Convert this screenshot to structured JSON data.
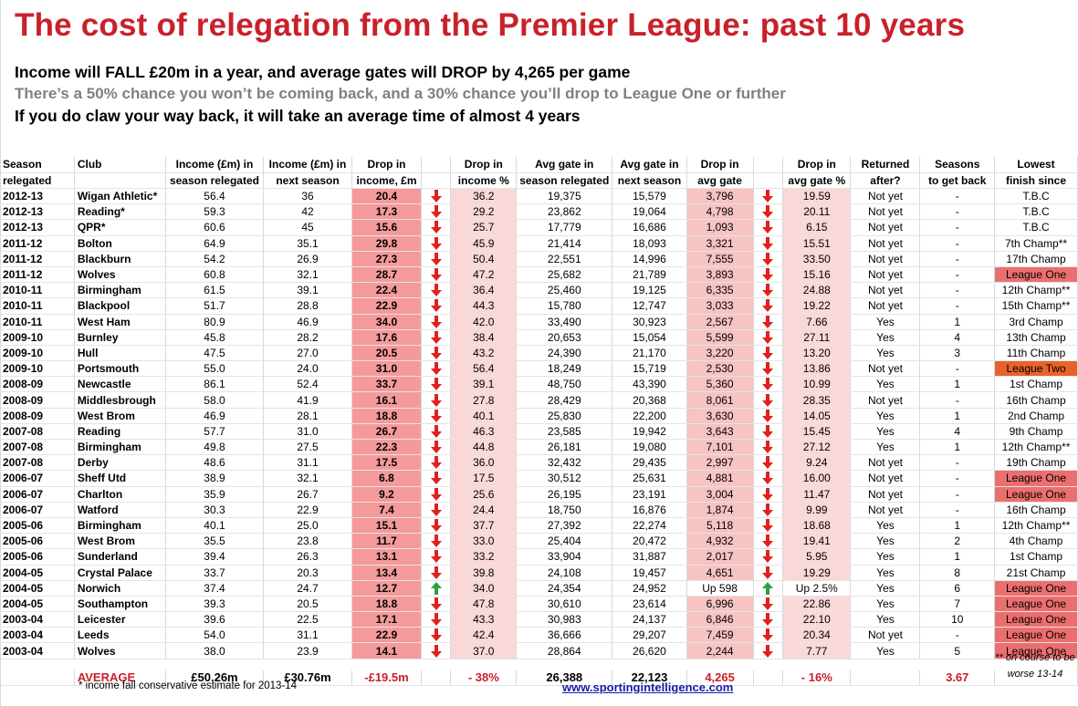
{
  "title": "The cost of relegation from the Premier League: past 10 years",
  "headline_1": "Income will FALL £20m in a year, and average gates will DROP by 4,265 per game",
  "headline_2": "There’s a 50% chance you won’t be coming back, and a 30% chance you’ll drop to League One or further",
  "headline_3": "If you do claw your way back, it will take an average time of almost 4 years",
  "colors": {
    "title": "#c8212b",
    "drop": "#e02020",
    "up": "#2ea043",
    "league_one": "#ec6f6f",
    "league_two": "#e8632a"
  },
  "headers": {
    "season": [
      "Season",
      "relegated"
    ],
    "club": [
      "Club",
      ""
    ],
    "income": [
      "Income (£m) in",
      "season relegated"
    ],
    "income_next": [
      "Income (£m) in",
      "next season"
    ],
    "drop_income": [
      "Drop in",
      "income, £m"
    ],
    "drop_income_pct": [
      "Drop in",
      "income %"
    ],
    "gate": [
      "Avg gate in",
      "season relegated"
    ],
    "gate_next": [
      "Avg gate in",
      "next season"
    ],
    "drop_gate": [
      "Drop in",
      "avg gate"
    ],
    "drop_gate_pct": [
      "Drop in",
      "avg gate %"
    ],
    "returned": [
      "Returned",
      "after?"
    ],
    "seasons_back": [
      "Seasons",
      "to get back"
    ],
    "lowest": [
      "Lowest",
      "finish since"
    ]
  },
  "rows": [
    {
      "season": "2012-13",
      "club": "Wigan Athletic*",
      "income": "56.4",
      "next": "36",
      "drop": "20.4",
      "drop_pct": "36.2",
      "gate": "19,375",
      "gate_next": "15,579",
      "gate_drop": "3,796",
      "gate_drop_pct": "19.59",
      "returned": "Not yet",
      "back": "-",
      "lowest": "T.B.C",
      "arrow": "down"
    },
    {
      "season": "2012-13",
      "club": "Reading*",
      "income": "59.3",
      "next": "42",
      "drop": "17.3",
      "drop_pct": "29.2",
      "gate": "23,862",
      "gate_next": "19,064",
      "gate_drop": "4,798",
      "gate_drop_pct": "20.11",
      "returned": "Not yet",
      "back": "-",
      "lowest": "T.B.C",
      "arrow": "down"
    },
    {
      "season": "2012-13",
      "club": "QPR*",
      "income": "60.6",
      "next": "45",
      "drop": "15.6",
      "drop_pct": "25.7",
      "gate": "17,779",
      "gate_next": "16,686",
      "gate_drop": "1,093",
      "gate_drop_pct": "6.15",
      "returned": "Not yet",
      "back": "-",
      "lowest": "T.B.C",
      "arrow": "down"
    },
    {
      "season": "2011-12",
      "club": "Bolton",
      "income": "64.9",
      "next": "35.1",
      "drop": "29.8",
      "drop_pct": "45.9",
      "gate": "21,414",
      "gate_next": "18,093",
      "gate_drop": "3,321",
      "gate_drop_pct": "15.51",
      "returned": "Not yet",
      "back": "-",
      "lowest": "7th Champ**",
      "arrow": "down"
    },
    {
      "season": "2011-12",
      "club": "Blackburn",
      "income": "54.2",
      "next": "26.9",
      "drop": "27.3",
      "drop_pct": "50.4",
      "gate": "22,551",
      "gate_next": "14,996",
      "gate_drop": "7,555",
      "gate_drop_pct": "33.50",
      "returned": "Not yet",
      "back": "-",
      "lowest": "17th Champ",
      "arrow": "down"
    },
    {
      "season": "2011-12",
      "club": "Wolves",
      "income": "60.8",
      "next": "32.1",
      "drop": "28.7",
      "drop_pct": "47.2",
      "gate": "25,682",
      "gate_next": "21,789",
      "gate_drop": "3,893",
      "gate_drop_pct": "15.16",
      "returned": "Not yet",
      "back": "-",
      "lowest": "League One",
      "arrow": "down",
      "tag": "one"
    },
    {
      "season": "2010-11",
      "club": "Birmingham",
      "income": "61.5",
      "next": "39.1",
      "drop": "22.4",
      "drop_pct": "36.4",
      "gate": "25,460",
      "gate_next": "19,125",
      "gate_drop": "6,335",
      "gate_drop_pct": "24.88",
      "returned": "Not yet",
      "back": "-",
      "lowest": "12th Champ**",
      "arrow": "down"
    },
    {
      "season": "2010-11",
      "club": "Blackpool",
      "income": "51.7",
      "next": "28.8",
      "drop": "22.9",
      "drop_pct": "44.3",
      "gate": "15,780",
      "gate_next": "12,747",
      "gate_drop": "3,033",
      "gate_drop_pct": "19.22",
      "returned": "Not yet",
      "back": "-",
      "lowest": "15th Champ**",
      "arrow": "down"
    },
    {
      "season": "2010-11",
      "club": "West Ham",
      "income": "80.9",
      "next": "46.9",
      "drop": "34.0",
      "drop_pct": "42.0",
      "gate": "33,490",
      "gate_next": "30,923",
      "gate_drop": "2,567",
      "gate_drop_pct": "7.66",
      "returned": "Yes",
      "back": "1",
      "lowest": "3rd Champ",
      "arrow": "down"
    },
    {
      "season": "2009-10",
      "club": "Burnley",
      "income": "45.8",
      "next": "28.2",
      "drop": "17.6",
      "drop_pct": "38.4",
      "gate": "20,653",
      "gate_next": "15,054",
      "gate_drop": "5,599",
      "gate_drop_pct": "27.11",
      "returned": "Yes",
      "back": "4",
      "lowest": "13th Champ",
      "arrow": "down"
    },
    {
      "season": "2009-10",
      "club": "Hull",
      "income": "47.5",
      "next": "27.0",
      "drop": "20.5",
      "drop_pct": "43.2",
      "gate": "24,390",
      "gate_next": "21,170",
      "gate_drop": "3,220",
      "gate_drop_pct": "13.20",
      "returned": "Yes",
      "back": "3",
      "lowest": "11th Champ",
      "arrow": "down"
    },
    {
      "season": "2009-10",
      "club": "Portsmouth",
      "income": "55.0",
      "next": "24.0",
      "drop": "31.0",
      "drop_pct": "56.4",
      "gate": "18,249",
      "gate_next": "15,719",
      "gate_drop": "2,530",
      "gate_drop_pct": "13.86",
      "returned": "Not yet",
      "back": "-",
      "lowest": "League Two",
      "arrow": "down",
      "tag": "two"
    },
    {
      "season": "2008-09",
      "club": "Newcastle",
      "income": "86.1",
      "next": "52.4",
      "drop": "33.7",
      "drop_pct": "39.1",
      "gate": "48,750",
      "gate_next": "43,390",
      "gate_drop": "5,360",
      "gate_drop_pct": "10.99",
      "returned": "Yes",
      "back": "1",
      "lowest": "1st Champ",
      "arrow": "down"
    },
    {
      "season": "2008-09",
      "club": "Middlesbrough",
      "income": "58.0",
      "next": "41.9",
      "drop": "16.1",
      "drop_pct": "27.8",
      "gate": "28,429",
      "gate_next": "20,368",
      "gate_drop": "8,061",
      "gate_drop_pct": "28.35",
      "returned": "Not yet",
      "back": "-",
      "lowest": "16th Champ",
      "arrow": "down"
    },
    {
      "season": "2008-09",
      "club": "West Brom",
      "income": "46.9",
      "next": "28.1",
      "drop": "18.8",
      "drop_pct": "40.1",
      "gate": "25,830",
      "gate_next": "22,200",
      "gate_drop": "3,630",
      "gate_drop_pct": "14.05",
      "returned": "Yes",
      "back": "1",
      "lowest": "2nd Champ",
      "arrow": "down"
    },
    {
      "season": "2007-08",
      "club": "Reading",
      "income": "57.7",
      "next": "31.0",
      "drop": "26.7",
      "drop_pct": "46.3",
      "gate": "23,585",
      "gate_next": "19,942",
      "gate_drop": "3,643",
      "gate_drop_pct": "15.45",
      "returned": "Yes",
      "back": "4",
      "lowest": "9th Champ",
      "arrow": "down"
    },
    {
      "season": "2007-08",
      "club": "Birmingham",
      "income": "49.8",
      "next": "27.5",
      "drop": "22.3",
      "drop_pct": "44.8",
      "gate": "26,181",
      "gate_next": "19,080",
      "gate_drop": "7,101",
      "gate_drop_pct": "27.12",
      "returned": "Yes",
      "back": "1",
      "lowest": "12th Champ**",
      "arrow": "down"
    },
    {
      "season": "2007-08",
      "club": "Derby",
      "income": "48.6",
      "next": "31.1",
      "drop": "17.5",
      "drop_pct": "36.0",
      "gate": "32,432",
      "gate_next": "29,435",
      "gate_drop": "2,997",
      "gate_drop_pct": "9.24",
      "returned": "Not yet",
      "back": "-",
      "lowest": "19th Champ",
      "arrow": "down"
    },
    {
      "season": "2006-07",
      "club": "Sheff Utd",
      "income": "38.9",
      "next": "32.1",
      "drop": "6.8",
      "drop_pct": "17.5",
      "gate": "30,512",
      "gate_next": "25,631",
      "gate_drop": "4,881",
      "gate_drop_pct": "16.00",
      "returned": "Not yet",
      "back": "-",
      "lowest": "League One",
      "arrow": "down",
      "tag": "one"
    },
    {
      "season": "2006-07",
      "club": "Charlton",
      "income": "35.9",
      "next": "26.7",
      "drop": "9.2",
      "drop_pct": "25.6",
      "gate": "26,195",
      "gate_next": "23,191",
      "gate_drop": "3,004",
      "gate_drop_pct": "11.47",
      "returned": "Not yet",
      "back": "-",
      "lowest": "League One",
      "arrow": "down",
      "tag": "one"
    },
    {
      "season": "2006-07",
      "club": "Watford",
      "income": "30.3",
      "next": "22.9",
      "drop": "7.4",
      "drop_pct": "24.4",
      "gate": "18,750",
      "gate_next": "16,876",
      "gate_drop": "1,874",
      "gate_drop_pct": "9.99",
      "returned": "Not yet",
      "back": "-",
      "lowest": "16th Champ",
      "arrow": "down"
    },
    {
      "season": "2005-06",
      "club": "Birmingham",
      "income": "40.1",
      "next": "25.0",
      "drop": "15.1",
      "drop_pct": "37.7",
      "gate": "27,392",
      "gate_next": "22,274",
      "gate_drop": "5,118",
      "gate_drop_pct": "18.68",
      "returned": "Yes",
      "back": "1",
      "lowest": "12th Champ**",
      "arrow": "down"
    },
    {
      "season": "2005-06",
      "club": "West Brom",
      "income": "35.5",
      "next": "23.8",
      "drop": "11.7",
      "drop_pct": "33.0",
      "gate": "25,404",
      "gate_next": "20,472",
      "gate_drop": "4,932",
      "gate_drop_pct": "19.41",
      "returned": "Yes",
      "back": "2",
      "lowest": "4th Champ",
      "arrow": "down"
    },
    {
      "season": "2005-06",
      "club": "Sunderland",
      "income": "39.4",
      "next": "26.3",
      "drop": "13.1",
      "drop_pct": "33.2",
      "gate": "33,904",
      "gate_next": "31,887",
      "gate_drop": "2,017",
      "gate_drop_pct": "5.95",
      "returned": "Yes",
      "back": "1",
      "lowest": "1st Champ",
      "arrow": "down"
    },
    {
      "season": "2004-05",
      "club": "Crystal Palace",
      "income": "33.7",
      "next": "20.3",
      "drop": "13.4",
      "drop_pct": "39.8",
      "gate": "24,108",
      "gate_next": "19,457",
      "gate_drop": "4,651",
      "gate_drop_pct": "19.29",
      "returned": "Yes",
      "back": "8",
      "lowest": "21st Champ",
      "arrow": "down"
    },
    {
      "season": "2004-05",
      "club": "Norwich",
      "income": "37.4",
      "next": "24.7",
      "drop": "12.7",
      "drop_pct": "34.0",
      "gate": "24,354",
      "gate_next": "24,952",
      "gate_drop": "Up 598",
      "gate_drop_pct": "Up 2.5%",
      "returned": "Yes",
      "back": "6",
      "lowest": "League One",
      "arrow": "up",
      "tag": "one"
    },
    {
      "season": "2004-05",
      "club": "Southampton",
      "income": "39.3",
      "next": "20.5",
      "drop": "18.8",
      "drop_pct": "47.8",
      "gate": "30,610",
      "gate_next": "23,614",
      "gate_drop": "6,996",
      "gate_drop_pct": "22.86",
      "returned": "Yes",
      "back": "7",
      "lowest": "League One",
      "arrow": "down",
      "tag": "one"
    },
    {
      "season": "2003-04",
      "club": "Leicester",
      "income": "39.6",
      "next": "22.5",
      "drop": "17.1",
      "drop_pct": "43.3",
      "gate": "30,983",
      "gate_next": "24,137",
      "gate_drop": "6,846",
      "gate_drop_pct": "22.10",
      "returned": "Yes",
      "back": "10",
      "lowest": "League One",
      "arrow": "down",
      "tag": "one"
    },
    {
      "season": "2003-04",
      "club": "Leeds",
      "income": "54.0",
      "next": "31.1",
      "drop": "22.9",
      "drop_pct": "42.4",
      "gate": "36,666",
      "gate_next": "29,207",
      "gate_drop": "7,459",
      "gate_drop_pct": "20.34",
      "returned": "Not yet",
      "back": "-",
      "lowest": "League One",
      "arrow": "down",
      "tag": "one"
    },
    {
      "season": "2003-04",
      "club": "Wolves",
      "income": "38.0",
      "next": "23.9",
      "drop": "14.1",
      "drop_pct": "37.0",
      "gate": "28,864",
      "gate_next": "26,620",
      "gate_drop": "2,244",
      "gate_drop_pct": "7.77",
      "returned": "Yes",
      "back": "5",
      "lowest": "League One",
      "arrow": "down",
      "tag": "one"
    }
  ],
  "average": {
    "label": "AVERAGE",
    "income": "£50.26m",
    "next": "£30.76m",
    "drop": "-£19.5m",
    "drop_pct": "- 38%",
    "gate": "26,388",
    "gate_next": "22,123",
    "gate_drop": "4,265",
    "gate_drop_pct": "- 16%",
    "back": "3.67"
  },
  "footnote_right": "** on course to be worse 13-14",
  "footnote_left": "* income fall conservative estimate for 2013-14",
  "footer_link": "www.sportingintelligence.com"
}
